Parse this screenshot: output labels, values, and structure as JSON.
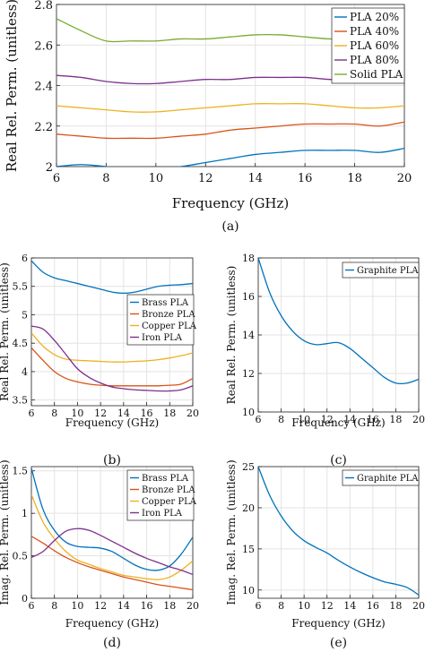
{
  "colors": {
    "blue": "#0072BD",
    "orange": "#D95319",
    "yellow": "#EDB120",
    "purple": "#7E2F8E",
    "green": "#77AC30"
  },
  "chart_data": [
    {
      "id": "a",
      "type": "line",
      "panel_label": "(a)",
      "xlabel": "Frequency (GHz)",
      "ylabel": "Real Rel. Perm. (unitless)",
      "xlim": [
        6,
        20
      ],
      "ylim": [
        2,
        2.8
      ],
      "xticks": [
        6,
        8,
        10,
        12,
        14,
        16,
        18,
        20
      ],
      "yticks": [
        2,
        2.2,
        2.4,
        2.6,
        2.8
      ],
      "grid": true,
      "legend_position": "top-right",
      "x": [
        6,
        7,
        8,
        9,
        10,
        11,
        12,
        13,
        14,
        15,
        16,
        17,
        18,
        19,
        20
      ],
      "series": [
        {
          "name": "PLA 20%",
          "color": "blue",
          "values": [
            2.0,
            2.01,
            2.0,
            1.99,
            1.99,
            2.0,
            2.02,
            2.04,
            2.06,
            2.07,
            2.08,
            2.08,
            2.08,
            2.07,
            2.09
          ]
        },
        {
          "name": "PLA 40%",
          "color": "orange",
          "values": [
            2.16,
            2.15,
            2.14,
            2.14,
            2.14,
            2.15,
            2.16,
            2.18,
            2.19,
            2.2,
            2.21,
            2.21,
            2.21,
            2.2,
            2.22
          ]
        },
        {
          "name": "PLA 60%",
          "color": "yellow",
          "values": [
            2.3,
            2.29,
            2.28,
            2.27,
            2.27,
            2.28,
            2.29,
            2.3,
            2.31,
            2.31,
            2.31,
            2.3,
            2.29,
            2.29,
            2.3
          ]
        },
        {
          "name": "PLA 80%",
          "color": "purple",
          "values": [
            2.45,
            2.44,
            2.42,
            2.41,
            2.41,
            2.42,
            2.43,
            2.43,
            2.44,
            2.44,
            2.44,
            2.43,
            2.43,
            2.42,
            2.42
          ]
        },
        {
          "name": "Solid PLA",
          "color": "green",
          "values": [
            2.73,
            2.67,
            2.62,
            2.62,
            2.62,
            2.63,
            2.63,
            2.64,
            2.65,
            2.65,
            2.64,
            2.63,
            2.63,
            2.62,
            2.62
          ]
        }
      ]
    },
    {
      "id": "b",
      "type": "line",
      "panel_label": "(b)",
      "xlabel": "Frequency (GHz)",
      "ylabel": "Real Rel. Perm. (unitless)",
      "xlim": [
        6,
        20
      ],
      "ylim": [
        3.4,
        6
      ],
      "xticks": [
        6,
        8,
        10,
        12,
        14,
        16,
        18,
        20
      ],
      "yticks": [
        3.5,
        4,
        4.5,
        5,
        5.5,
        6
      ],
      "grid": true,
      "legend_position": "right",
      "x": [
        6,
        7,
        8,
        9,
        10,
        11,
        12,
        13,
        14,
        15,
        16,
        17,
        18,
        19,
        20
      ],
      "series": [
        {
          "name": "Brass PLA",
          "color": "blue",
          "values": [
            5.95,
            5.75,
            5.65,
            5.6,
            5.55,
            5.5,
            5.45,
            5.4,
            5.38,
            5.4,
            5.45,
            5.5,
            5.52,
            5.53,
            5.55
          ]
        },
        {
          "name": "Bronze PLA",
          "color": "orange",
          "values": [
            4.42,
            4.2,
            4.0,
            3.88,
            3.82,
            3.78,
            3.76,
            3.75,
            3.75,
            3.75,
            3.75,
            3.75,
            3.76,
            3.78,
            3.88
          ]
        },
        {
          "name": "Copper PLA",
          "color": "yellow",
          "values": [
            4.68,
            4.45,
            4.3,
            4.22,
            4.2,
            4.19,
            4.18,
            4.17,
            4.17,
            4.18,
            4.19,
            4.21,
            4.24,
            4.28,
            4.33
          ]
        },
        {
          "name": "Iron PLA",
          "color": "purple",
          "values": [
            4.8,
            4.75,
            4.55,
            4.3,
            4.05,
            3.9,
            3.8,
            3.73,
            3.7,
            3.68,
            3.67,
            3.66,
            3.66,
            3.68,
            3.75
          ]
        }
      ]
    },
    {
      "id": "c",
      "type": "line",
      "panel_label": "(c)",
      "xlabel": "Frequency (GHz)",
      "ylabel": "Real Rel. Perm. (unitless)",
      "xlim": [
        6,
        20
      ],
      "ylim": [
        10,
        18
      ],
      "xticks": [
        6,
        8,
        10,
        12,
        14,
        16,
        18,
        20
      ],
      "yticks": [
        10,
        12,
        14,
        16,
        18
      ],
      "grid": true,
      "legend_position": "top-right",
      "x": [
        6,
        7,
        8,
        9,
        10,
        11,
        12,
        13,
        14,
        15,
        16,
        17,
        18,
        19,
        20
      ],
      "series": [
        {
          "name": "Graphite PLA",
          "color": "blue",
          "values": [
            18.0,
            16.2,
            15.0,
            14.2,
            13.7,
            13.5,
            13.55,
            13.6,
            13.3,
            12.8,
            12.3,
            11.8,
            11.5,
            11.5,
            11.7
          ]
        }
      ]
    },
    {
      "id": "d",
      "type": "line",
      "panel_label": "(d)",
      "xlabel": "Frequency (GHz)",
      "ylabel": "Imag. Rel. Perm. (unitless)",
      "xlim": [
        6,
        20
      ],
      "ylim": [
        0,
        1.55
      ],
      "xticks": [
        6,
        8,
        10,
        12,
        14,
        16,
        18,
        20
      ],
      "yticks": [
        0,
        0.5,
        1,
        1.5
      ],
      "grid": true,
      "legend_position": "top-right",
      "x": [
        6,
        7,
        8,
        9,
        10,
        11,
        12,
        13,
        14,
        15,
        16,
        17,
        18,
        19,
        20
      ],
      "series": [
        {
          "name": "Brass PLA",
          "color": "blue",
          "values": [
            1.53,
            1.05,
            0.8,
            0.66,
            0.61,
            0.6,
            0.59,
            0.55,
            0.47,
            0.39,
            0.34,
            0.33,
            0.38,
            0.52,
            0.72
          ]
        },
        {
          "name": "Bronze PLA",
          "color": "orange",
          "values": [
            0.73,
            0.65,
            0.56,
            0.48,
            0.42,
            0.37,
            0.33,
            0.29,
            0.25,
            0.22,
            0.19,
            0.16,
            0.14,
            0.12,
            0.1
          ]
        },
        {
          "name": "Copper PLA",
          "color": "yellow",
          "values": [
            1.22,
            0.9,
            0.7,
            0.55,
            0.45,
            0.4,
            0.35,
            0.31,
            0.27,
            0.25,
            0.23,
            0.22,
            0.25,
            0.33,
            0.44
          ]
        },
        {
          "name": "Iron PLA",
          "color": "purple",
          "values": [
            0.48,
            0.55,
            0.68,
            0.79,
            0.82,
            0.8,
            0.74,
            0.67,
            0.6,
            0.53,
            0.47,
            0.42,
            0.37,
            0.33,
            0.28
          ]
        }
      ]
    },
    {
      "id": "e",
      "type": "line",
      "panel_label": "(e)",
      "xlabel": "Frequency (GHz)",
      "ylabel": "Imag. Rel. Perm. (unitless)",
      "xlim": [
        6,
        20
      ],
      "ylim": [
        9,
        25
      ],
      "xticks": [
        6,
        8,
        10,
        12,
        14,
        16,
        18,
        20
      ],
      "yticks": [
        10,
        15,
        20,
        25
      ],
      "grid": true,
      "legend_position": "top-right",
      "x": [
        6,
        7,
        8,
        9,
        10,
        11,
        12,
        13,
        14,
        15,
        16,
        17,
        18,
        19,
        20
      ],
      "series": [
        {
          "name": "Graphite PLA",
          "color": "blue",
          "values": [
            25.0,
            21.5,
            19.0,
            17.2,
            16.0,
            15.2,
            14.5,
            13.6,
            12.8,
            12.1,
            11.5,
            11.0,
            10.7,
            10.3,
            9.4
          ]
        }
      ]
    }
  ]
}
